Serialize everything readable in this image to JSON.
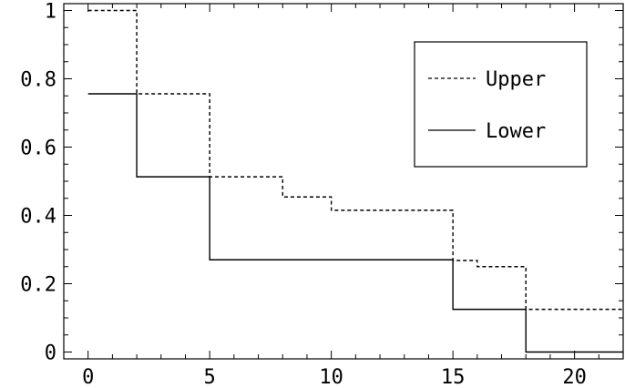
{
  "chart_data": {
    "type": "line",
    "step": true,
    "xlim": [
      -1,
      22
    ],
    "ylim": [
      -0.02,
      1.02
    ],
    "x_ticks_major": [
      0,
      5,
      10,
      15,
      20
    ],
    "x_tick_labels": [
      "0",
      "5",
      "10",
      "15",
      "20"
    ],
    "x_ticks_minor": [
      1,
      2,
      3,
      4,
      6,
      7,
      8,
      9,
      11,
      12,
      13,
      14,
      16,
      17,
      18,
      19,
      21
    ],
    "y_ticks_major": [
      0,
      0.2,
      0.4,
      0.6,
      0.8,
      1
    ],
    "y_tick_labels": [
      "0",
      "0.2",
      "0.4",
      "0.6",
      "0.8",
      "1"
    ],
    "y_ticks_minor": [
      0.05,
      0.1,
      0.15,
      0.25,
      0.3,
      0.35,
      0.45,
      0.5,
      0.55,
      0.65,
      0.7,
      0.75,
      0.85,
      0.9,
      0.95
    ],
    "grid": false,
    "legend_position": "top-right",
    "series": [
      {
        "name": "Upper",
        "style": "dashed",
        "x": [
          0,
          2,
          5,
          8,
          10,
          15,
          16,
          18,
          22
        ],
        "y": [
          1.0,
          0.756,
          0.513,
          0.454,
          0.415,
          0.268,
          0.25,
          0.125,
          0.125
        ]
      },
      {
        "name": "Lower",
        "style": "solid",
        "x": [
          0,
          2,
          5,
          15,
          18,
          22
        ],
        "y": [
          0.756,
          0.513,
          0.27,
          0.125,
          0.0,
          0.0
        ]
      }
    ]
  }
}
